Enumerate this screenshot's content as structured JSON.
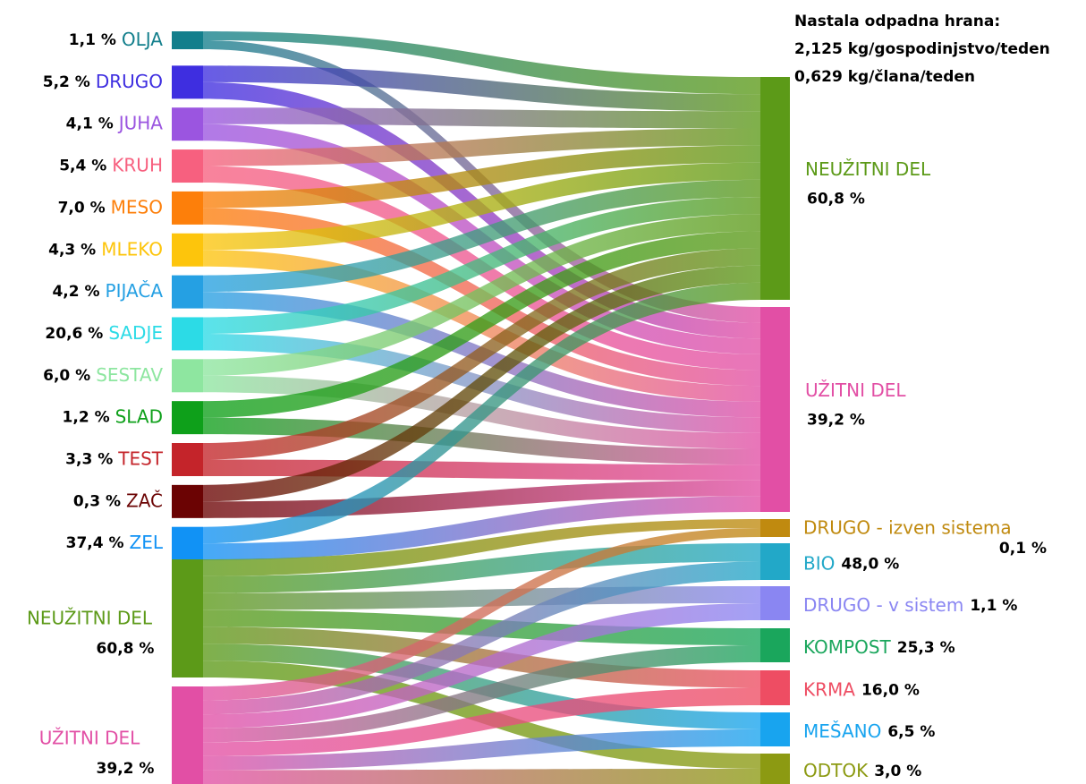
{
  "chart_data": {
    "type": "sankey",
    "title": "Nastala odpadna hrana:",
    "subtitles": [
      "2,125 kg/gospodinjstvo/teden",
      "0,629 kg/člana/teden"
    ],
    "categories": [
      "OLJA",
      "DRUGO",
      "JUHA",
      "KRUH",
      "MESO",
      "MLEKO",
      "PIJAČA",
      "SADJE",
      "SESTAV",
      "SLAD",
      "TEST",
      "ZAČ",
      "ZEL"
    ],
    "values": [
      1.1,
      5.2,
      4.1,
      5.4,
      7.0,
      4.3,
      4.2,
      20.6,
      6.0,
      1.2,
      3.3,
      0.3,
      37.4
    ],
    "value_labels": [
      "1,1 %",
      "5,2 %",
      "4,1 %",
      "5,4 %",
      "7,0 %",
      "4,3 %",
      "4,2 %",
      "20,6 %",
      "6,0 %",
      "1,2 %",
      "3,3 %",
      "0,3 %",
      "37,4 %"
    ],
    "colors": [
      "#137f8c",
      "#3e2ee0",
      "#9b55e0",
      "#f7607f",
      "#fd7f0a",
      "#fdc50c",
      "#25a0e3",
      "#2cdbe6",
      "#8ee6a0",
      "#0ea01a",
      "#c4242a",
      "#6b0303",
      "#1192f5"
    ],
    "parts": {
      "names": [
        "NEUŽITNI DEL",
        "UŽITNI DEL"
      ],
      "values": [
        60.8,
        39.2
      ],
      "value_labels": [
        "60,8 %",
        "39,2 %"
      ],
      "colors": [
        "#5c9a18",
        "#e24fa5"
      ]
    },
    "destinations": {
      "names": [
        "DRUGO - izven sistema",
        "BIO",
        "DRUGO - v sistem",
        "KOMPOST",
        "KRMA",
        "MEŠANO",
        "ODTOK"
      ],
      "values": [
        0.1,
        48.0,
        1.1,
        25.3,
        16.0,
        6.5,
        3.0
      ],
      "value_labels": [
        "0,1 %",
        "48,0 %",
        "1,1 %",
        "25,3 %",
        "16,0 %",
        "6,5 %",
        "3,0 %"
      ],
      "colors": [
        "#c08a0f",
        "#22a8c8",
        "#8a86f2",
        "#1aa65c",
        "#ee4d63",
        "#18a4ef",
        "#8c9a12"
      ]
    }
  }
}
